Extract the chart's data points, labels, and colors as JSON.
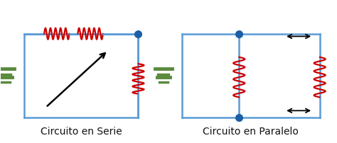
{
  "bg_color": "#ffffff",
  "circuit_color": "#5b9bd5",
  "resistor_color": "#cc0000",
  "battery_color": "#5a8a3c",
  "dot_color": "#1a5fa8",
  "arrow_color": "#000000",
  "label_serie": "Circuito en Serie",
  "label_paralelo": "Circuito en Paralelo",
  "label_fontsize": 10,
  "label_fontweight": "normal"
}
